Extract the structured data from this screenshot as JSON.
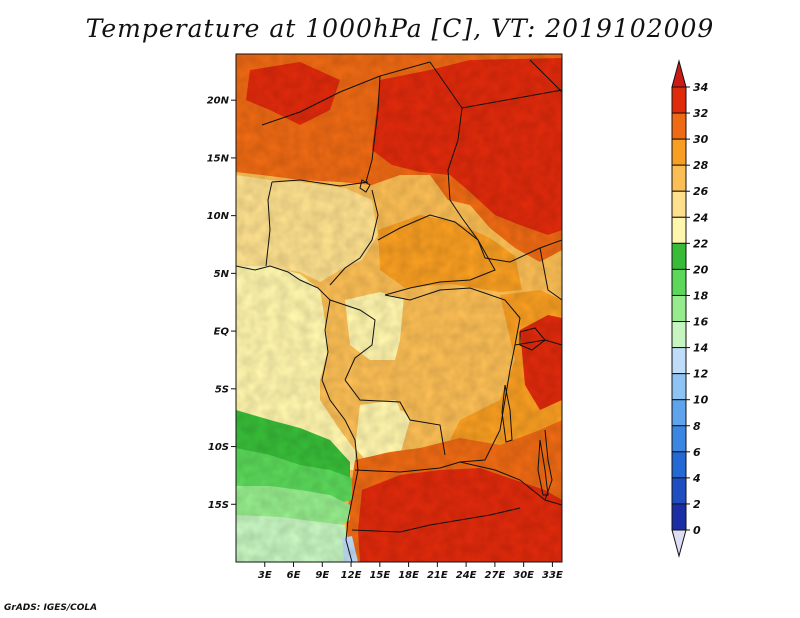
{
  "title": "Temperature at 1000hPa [C], VT: 2019102009",
  "credit": "GrADS: IGES/COLA",
  "map": {
    "lon_range": [
      0,
      34
    ],
    "lat_range": [
      -20,
      24
    ],
    "lat_ticks": [
      {
        "value": 20,
        "label": "20N"
      },
      {
        "value": 15,
        "label": "15N"
      },
      {
        "value": 10,
        "label": "10N"
      },
      {
        "value": 5,
        "label": "5N"
      },
      {
        "value": 0,
        "label": "EQ"
      },
      {
        "value": -5,
        "label": "5S"
      },
      {
        "value": -10,
        "label": "10S"
      },
      {
        "value": -15,
        "label": "15S"
      }
    ],
    "lon_ticks": [
      {
        "value": 3,
        "label": "3E"
      },
      {
        "value": 6,
        "label": "6E"
      },
      {
        "value": 9,
        "label": "9E"
      },
      {
        "value": 12,
        "label": "12E"
      },
      {
        "value": 15,
        "label": "15E"
      },
      {
        "value": 18,
        "label": "18E"
      },
      {
        "value": 21,
        "label": "21E"
      },
      {
        "value": 24,
        "label": "24E"
      },
      {
        "value": 27,
        "label": "27E"
      },
      {
        "value": 30,
        "label": "30E"
      },
      {
        "value": 33,
        "label": "33E"
      }
    ]
  },
  "colorbar": {
    "levels": [
      "0",
      "2",
      "4",
      "6",
      "8",
      "10",
      "12",
      "14",
      "16",
      "18",
      "20",
      "22",
      "24",
      "26",
      "28",
      "30",
      "32",
      "34"
    ],
    "colors": [
      "#17087a",
      "#1c2ea6",
      "#1e4ec2",
      "#2468d6",
      "#3b86e2",
      "#5da4ec",
      "#8ec3f3",
      "#bfdcf8",
      "#c6f5c0",
      "#96ec8c",
      "#5bd85a",
      "#38bc38",
      "#fff6ad",
      "#fde08e",
      "#fbbe55",
      "#f89e22",
      "#ee6a14",
      "#e02a0c"
    ],
    "under_color": "#ddddf6",
    "over_color": "#cc1a14"
  }
}
